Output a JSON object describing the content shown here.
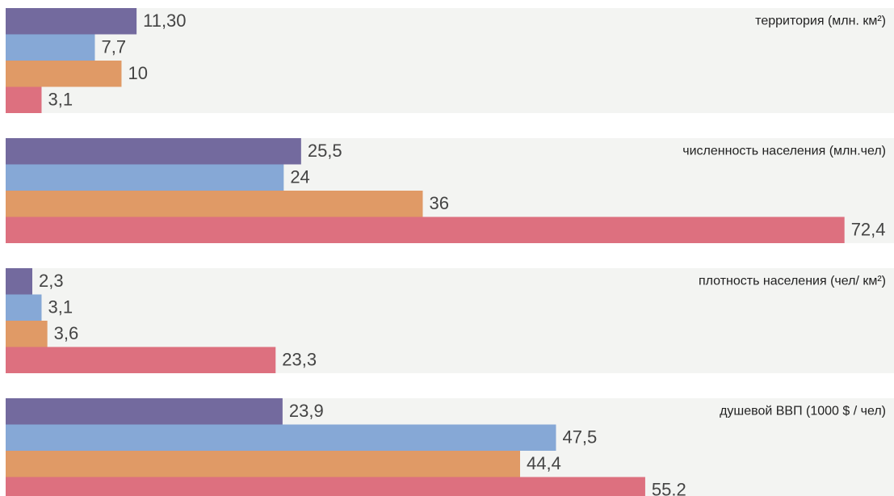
{
  "chart_data": [
    {
      "type": "bar",
      "title": "территория (млн. км²)",
      "values": [
        11.3,
        7.7,
        10,
        3.1
      ],
      "value_labels": [
        "11,30",
        "7,7",
        "10",
        "3,1"
      ],
      "colors": [
        "#736a9e",
        "#86a8d6",
        "#e09a66",
        "#dd707f"
      ],
      "xlim": [
        0,
        75
      ]
    },
    {
      "type": "bar",
      "title": "численность населения (млн.чел)",
      "values": [
        25.5,
        24,
        36,
        72.4
      ],
      "value_labels": [
        "25,5",
        "24",
        "36",
        "72,4"
      ],
      "colors": [
        "#736a9e",
        "#86a8d6",
        "#e09a66",
        "#dd707f"
      ],
      "xlim": [
        0,
        75
      ]
    },
    {
      "type": "bar",
      "title": "плотность населения (чел/ км²)",
      "values": [
        2.3,
        3.1,
        3.6,
        23.3
      ],
      "value_labels": [
        "2,3",
        "3,1",
        "3,6",
        "23,3"
      ],
      "colors": [
        "#736a9e",
        "#86a8d6",
        "#e09a66",
        "#dd707f"
      ],
      "xlim": [
        0,
        75
      ]
    },
    {
      "type": "bar",
      "title": "душевой ВВП (1000 $ / чел)",
      "values": [
        23.9,
        47.5,
        44.4,
        55.2
      ],
      "value_labels": [
        "23,9",
        "47,5",
        "44,4",
        "55.2"
      ],
      "colors": [
        "#736a9e",
        "#86a8d6",
        "#e09a66",
        "#dd707f"
      ],
      "xlim": [
        0,
        75
      ]
    }
  ]
}
